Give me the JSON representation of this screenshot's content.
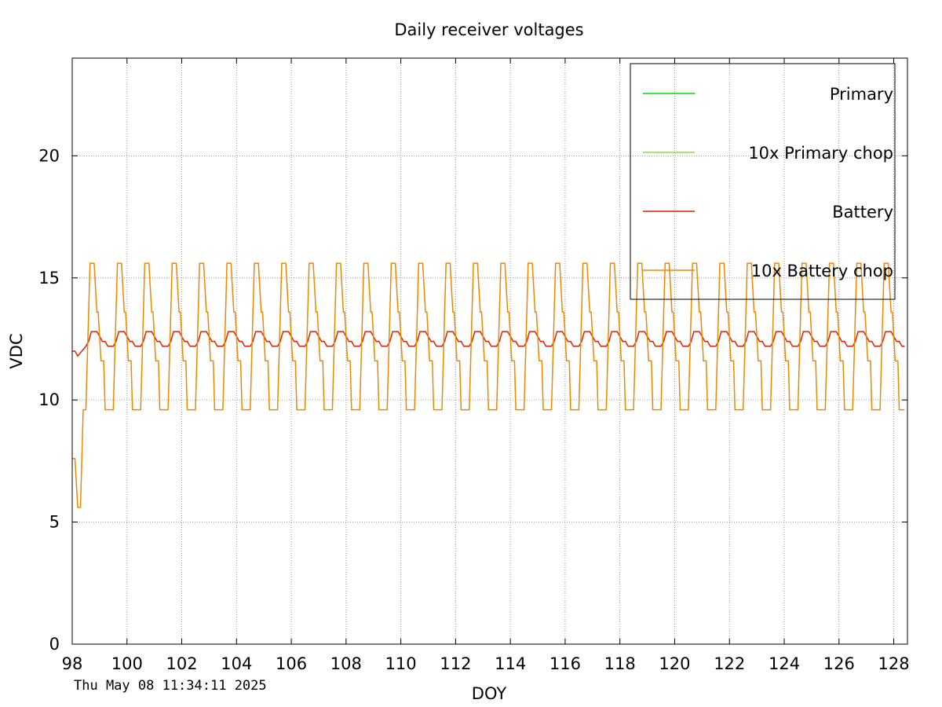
{
  "chart_data": {
    "type": "line",
    "title": "Daily receiver voltages",
    "xlabel": "DOY",
    "ylabel": "VDC",
    "xlim": [
      98,
      128.5
    ],
    "ylim": [
      0,
      24
    ],
    "x_ticks": [
      "98",
      "100",
      "102",
      "104",
      "106",
      "108",
      "110",
      "112",
      "114",
      "116",
      "118",
      "120",
      "122",
      "124",
      "126",
      "128"
    ],
    "y_ticks": [
      "0",
      "5",
      "10",
      "15",
      "20"
    ],
    "grid": true,
    "legend_position": "top-right",
    "timestamp": "Thu May 08 11:34:11 2025",
    "colors": {
      "primary": "#00dd00",
      "primary_chop": "#88dd44",
      "battery": "#dd2200",
      "battery_chop": "#ee8800"
    },
    "series": [
      {
        "name": "Primary",
        "color": "#00dd00",
        "values": []
      },
      {
        "name": "10x Primary chop",
        "color": "#88dd44",
        "values": []
      },
      {
        "name": "Battery",
        "color": "#dd2200",
        "daily_pattern": {
          "x_offset": [
            0.0,
            0.1,
            0.2,
            0.3,
            0.4,
            0.5,
            0.6,
            0.7,
            0.8,
            0.9
          ],
          "y": [
            12.2,
            12.4,
            12.8,
            12.8,
            12.8,
            12.6,
            12.4,
            12.4,
            12.2,
            12.2
          ]
        },
        "start": [
          [
            98.0,
            12.0
          ],
          [
            98.1,
            12.0
          ],
          [
            98.2,
            11.8
          ]
        ]
      },
      {
        "name": "10x Battery chop",
        "color": "#ee8800",
        "daily_pattern": {
          "x_offset": [
            0.0,
            0.1,
            0.15,
            0.3,
            0.4,
            0.45,
            0.55,
            0.65,
            0.7,
            0.85,
            0.9
          ],
          "y": [
            9.6,
            13.6,
            15.6,
            15.6,
            13.6,
            13.6,
            11.6,
            11.6,
            9.6,
            9.6,
            9.6
          ]
        },
        "start": [
          [
            98.0,
            7.6
          ],
          [
            98.1,
            7.6
          ],
          [
            98.2,
            5.6
          ],
          [
            98.3,
            5.6
          ],
          [
            98.4,
            9.6
          ]
        ]
      }
    ]
  }
}
